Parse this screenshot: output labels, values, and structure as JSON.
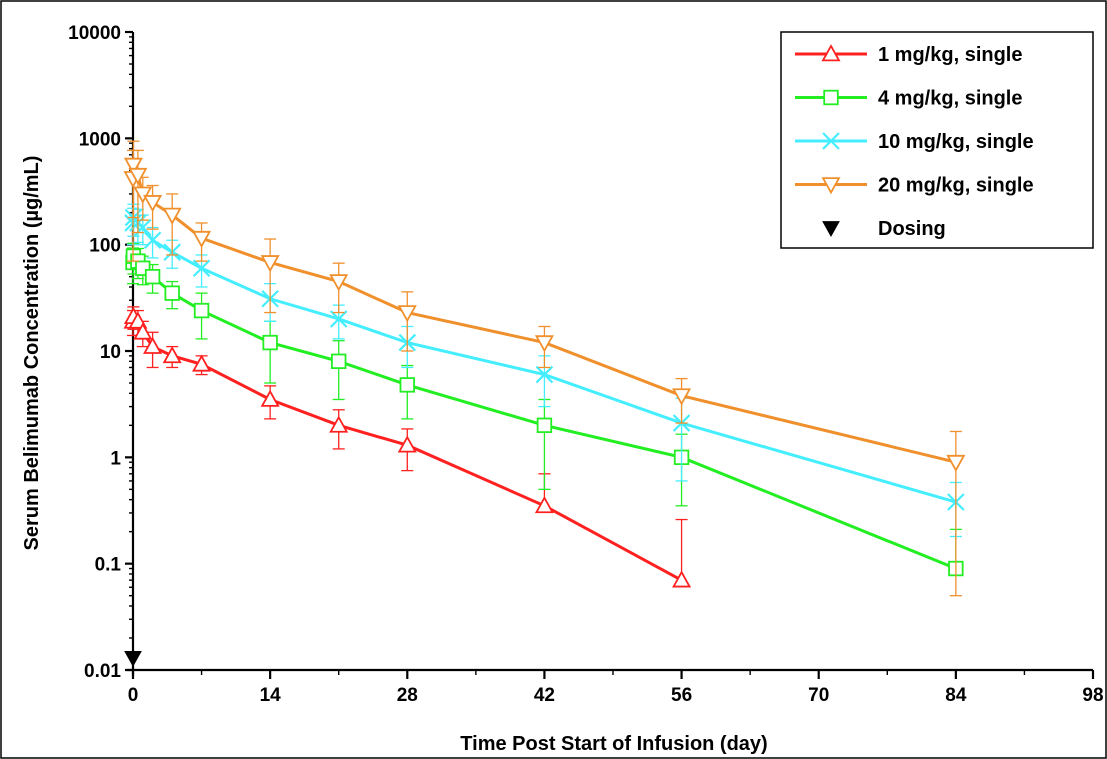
{
  "chart_data": {
    "type": "line",
    "xlabel": "Time Post Start of Infusion (day)",
    "ylabel": "Serum Belimumab Concentration (µg/mL)",
    "xlim": [
      0,
      98
    ],
    "ylim": [
      0.01,
      10000
    ],
    "yscale": "log",
    "xticks": [
      "0",
      "14",
      "28",
      "42",
      "56",
      "70",
      "84",
      "98"
    ],
    "yticks": [
      "0.01",
      "0.1",
      "1",
      "10",
      "100",
      "1000",
      "10000"
    ],
    "legend_position": "top-right",
    "series": [
      {
        "name": "1 mg/kg, single",
        "color": "#ff2020",
        "marker": "triangle-up",
        "x": [
          0,
          0.04,
          0.5,
          1,
          2,
          4,
          7,
          14,
          21,
          28,
          42,
          56
        ],
        "y": [
          19,
          21,
          19,
          15,
          11,
          9,
          7.5,
          3.5,
          2,
          1.3,
          0.35,
          0.07
        ],
        "err": [
          5,
          5,
          5,
          4,
          4,
          2,
          1.5,
          1.2,
          0.8,
          0.55,
          0.35,
          0.19
        ]
      },
      {
        "name": "4 mg/kg, single",
        "color": "#22ee22",
        "marker": "square",
        "x": [
          0,
          0.04,
          0.5,
          1,
          2,
          4,
          7,
          14,
          21,
          28,
          42,
          56,
          84
        ],
        "y": [
          68,
          78,
          70,
          60,
          50,
          35,
          24,
          12,
          8,
          4.8,
          2,
          1,
          0.09
        ],
        "err": [
          25,
          25,
          22,
          18,
          15,
          10,
          11,
          7,
          4.5,
          2.5,
          1.5,
          0.65,
          0.12
        ]
      },
      {
        "name": "10 mg/kg, single",
        "color": "#44eeff",
        "marker": "x",
        "x": [
          0,
          0.04,
          0.5,
          1,
          2,
          4,
          7,
          14,
          21,
          28,
          42,
          56,
          84
        ],
        "y": [
          160,
          180,
          160,
          145,
          110,
          85,
          60,
          31,
          20,
          12,
          6,
          2.1,
          0.38
        ],
        "err": [
          60,
          60,
          55,
          45,
          35,
          25,
          20,
          12,
          7,
          5,
          3,
          1.5,
          0.2
        ]
      },
      {
        "name": "20 mg/kg, single",
        "color": "#f0902c",
        "marker": "triangle-down",
        "x": [
          0,
          0.04,
          0.5,
          1,
          2,
          4,
          7,
          14,
          21,
          28,
          42,
          56,
          84
        ],
        "y": [
          420,
          560,
          450,
          300,
          250,
          190,
          115,
          68,
          45,
          23,
          12,
          3.8,
          0.9
        ],
        "err": [
          350,
          380,
          320,
          130,
          110,
          110,
          45,
          45,
          22,
          13,
          5,
          1.7,
          0.85
        ]
      }
    ],
    "dosing": {
      "name": "Dosing",
      "x": [
        0
      ],
      "y": [
        0.013
      ],
      "marker": "filled-triangle-down",
      "color": "#000000"
    }
  }
}
